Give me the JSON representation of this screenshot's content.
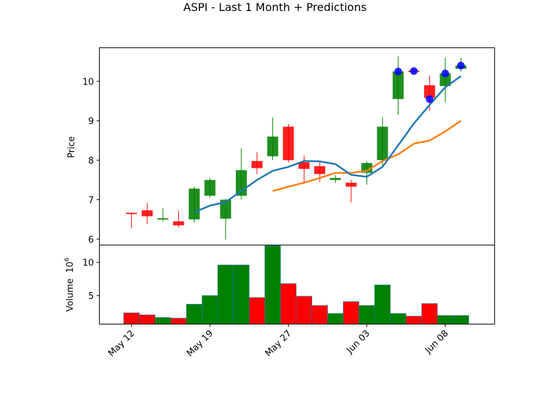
{
  "chart_data": {
    "type": "candlestick",
    "title": "ASPI - Last 1 Month + Predictions",
    "price_panel": {
      "ylabel": "Price",
      "ylim": [
        5.85,
        10.85
      ],
      "yticks": [
        6,
        7,
        8,
        9,
        10
      ],
      "grid": false
    },
    "volume_panel": {
      "ylabel": "Volume",
      "exponent_label": "10",
      "exponent_power": "6",
      "ylim": [
        0.7,
        12.6
      ],
      "yticks": [
        5,
        10
      ],
      "grid": false
    },
    "xticks": [
      {
        "label": "May 12",
        "x": 0
      },
      {
        "label": "May 19",
        "x": 5
      },
      {
        "label": "May 27",
        "x": 10
      },
      {
        "label": "Jun 03",
        "x": 15
      },
      {
        "label": "Jun 08",
        "x": 20
      }
    ],
    "xlim": [
      -2.05,
      23.15
    ],
    "colors": {
      "up": "#008000",
      "down": "#ff0000",
      "ma_short": "#1f77b4",
      "ma_long": "#ff7f0e",
      "prediction": "#0000ff"
    },
    "candles": [
      {
        "x": 0,
        "open": 6.67,
        "high": 6.67,
        "low": 6.27,
        "close": 6.66
      },
      {
        "x": 1,
        "open": 6.73,
        "high": 6.92,
        "low": 6.38,
        "close": 6.58
      },
      {
        "x": 2,
        "open": 6.52,
        "high": 6.78,
        "low": 6.45,
        "close": 6.53
      },
      {
        "x": 3,
        "open": 6.45,
        "high": 6.73,
        "low": 6.3,
        "close": 6.35
      },
      {
        "x": 4,
        "open": 6.5,
        "high": 7.33,
        "low": 6.42,
        "close": 7.28
      },
      {
        "x": 5,
        "open": 7.1,
        "high": 7.55,
        "low": 7.05,
        "close": 7.5
      },
      {
        "x": 6,
        "open": 6.52,
        "high": 7.02,
        "low": 5.99,
        "close": 7.0
      },
      {
        "x": 7,
        "open": 7.1,
        "high": 8.3,
        "low": 7.0,
        "close": 7.75
      },
      {
        "x": 8,
        "open": 7.98,
        "high": 8.2,
        "low": 7.65,
        "close": 7.8
      },
      {
        "x": 9,
        "open": 8.1,
        "high": 9.08,
        "low": 8.0,
        "close": 8.6
      },
      {
        "x": 10,
        "open": 8.85,
        "high": 8.92,
        "low": 7.95,
        "close": 8.0
      },
      {
        "x": 11,
        "open": 7.95,
        "high": 8.12,
        "low": 7.42,
        "close": 7.78
      },
      {
        "x": 12,
        "open": 7.85,
        "high": 7.95,
        "low": 7.45,
        "close": 7.65
      },
      {
        "x": 13,
        "open": 7.5,
        "high": 7.62,
        "low": 7.42,
        "close": 7.55
      },
      {
        "x": 14,
        "open": 7.43,
        "high": 7.5,
        "low": 6.93,
        "close": 7.33
      },
      {
        "x": 15,
        "open": 7.68,
        "high": 7.97,
        "low": 7.38,
        "close": 7.93
      },
      {
        "x": 16,
        "open": 8.0,
        "high": 9.08,
        "low": 7.82,
        "close": 8.85
      },
      {
        "x": 17,
        "open": 9.55,
        "high": 10.63,
        "low": 9.15,
        "close": 10.25
      },
      {
        "x": 18,
        "open": 10.27,
        "high": 10.3,
        "low": 10.22,
        "close": 10.25
      },
      {
        "x": 19,
        "open": 9.9,
        "high": 10.15,
        "low": 9.25,
        "close": 9.58
      },
      {
        "x": 20,
        "open": 9.88,
        "high": 10.6,
        "low": 9.47,
        "close": 10.2
      },
      {
        "x": 21,
        "open": 10.32,
        "high": 10.6,
        "low": 10.25,
        "close": 10.4
      }
    ],
    "volume": [
      {
        "x": 0,
        "value": 2.4,
        "dir": "down"
      },
      {
        "x": 1,
        "value": 2.1,
        "dir": "down"
      },
      {
        "x": 2,
        "value": 1.7,
        "dir": "up"
      },
      {
        "x": 3,
        "value": 1.6,
        "dir": "down"
      },
      {
        "x": 4,
        "value": 3.7,
        "dir": "up"
      },
      {
        "x": 5,
        "value": 5.0,
        "dir": "up"
      },
      {
        "x": 6,
        "value": 9.6,
        "dir": "up"
      },
      {
        "x": 7,
        "value": 9.6,
        "dir": "up"
      },
      {
        "x": 8,
        "value": 4.7,
        "dir": "down"
      },
      {
        "x": 9,
        "value": 12.5,
        "dir": "up"
      },
      {
        "x": 10,
        "value": 6.8,
        "dir": "down"
      },
      {
        "x": 11,
        "value": 4.9,
        "dir": "down"
      },
      {
        "x": 12,
        "value": 3.5,
        "dir": "down"
      },
      {
        "x": 13,
        "value": 2.3,
        "dir": "up"
      },
      {
        "x": 14,
        "value": 4.1,
        "dir": "down"
      },
      {
        "x": 15,
        "value": 3.5,
        "dir": "up"
      },
      {
        "x": 16,
        "value": 6.6,
        "dir": "up"
      },
      {
        "x": 17,
        "value": 2.3,
        "dir": "up"
      },
      {
        "x": 18,
        "value": 1.9,
        "dir": "down"
      },
      {
        "x": 19,
        "value": 3.8,
        "dir": "down"
      },
      {
        "x": 20,
        "value": 2.0,
        "dir": "up"
      },
      {
        "x": 21,
        "value": 2.0,
        "dir": "up"
      }
    ],
    "ma_short": {
      "x": [
        4,
        5,
        6,
        7,
        8,
        9,
        10,
        11,
        12,
        13,
        14,
        15,
        16,
        17,
        18,
        19,
        20,
        21
      ],
      "y": [
        6.68,
        6.85,
        6.94,
        7.22,
        7.5,
        7.73,
        7.83,
        7.98,
        7.97,
        7.9,
        7.63,
        7.58,
        7.83,
        8.38,
        8.93,
        9.4,
        9.85,
        10.13
      ]
    },
    "ma_long": {
      "x": [
        9,
        10,
        11,
        12,
        13,
        14,
        15,
        16,
        17,
        18,
        19,
        20,
        21
      ],
      "y": [
        7.22,
        7.33,
        7.43,
        7.55,
        7.68,
        7.68,
        7.73,
        7.98,
        8.15,
        8.42,
        8.5,
        8.73,
        9.0
      ]
    },
    "predictions": [
      {
        "x": 17,
        "y": 10.25
      },
      {
        "x": 18,
        "y": 10.26
      },
      {
        "x": 19,
        "y": 9.55
      },
      {
        "x": 20,
        "y": 10.2
      },
      {
        "x": 21,
        "y": 10.4
      }
    ]
  }
}
